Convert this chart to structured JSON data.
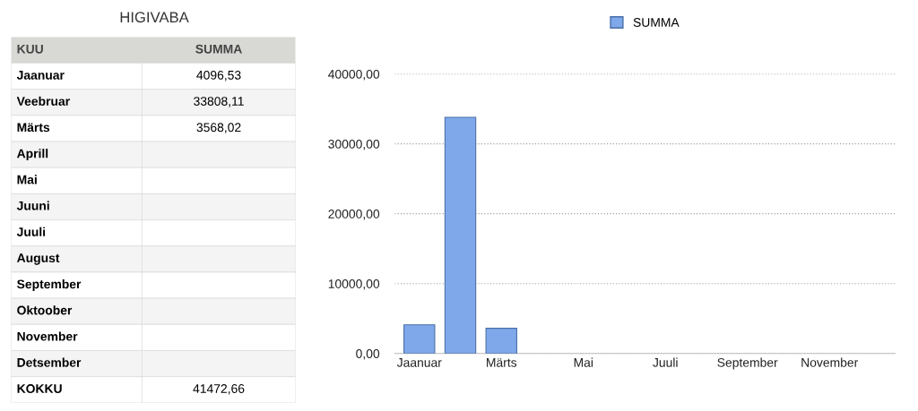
{
  "chart_data": [
    {
      "type": "other",
      "title": "HIGIVABA",
      "categories": [
        "Jaanuar",
        "Veebruar",
        "Märts",
        "Aprill",
        "Mai",
        "Juuni",
        "Juuli",
        "August",
        "September",
        "Oktoober",
        "November",
        "Detsember"
      ],
      "series": [
        {
          "name": "SUMMA",
          "values": [
            4096.53,
            33808.11,
            3568.02,
            null,
            null,
            null,
            null,
            null,
            null,
            null,
            null,
            null
          ],
          "value_labels": [
            "4096,53",
            "33808,11",
            "3568,02",
            null,
            null,
            null,
            null,
            null,
            null,
            null,
            null,
            null
          ]
        }
      ],
      "annotations": [
        "KUU",
        "KOKKU",
        "41472,66"
      ]
    },
    {
      "type": "bar",
      "categories": [
        "Jaanuar",
        null,
        "Märts",
        null,
        "Mai",
        null,
        "Juuli",
        null,
        "September",
        null,
        "November",
        null
      ],
      "series": [
        {
          "name": "SUMMA",
          "color": "#7fa8ea",
          "values": [
            4100,
            33800,
            3600,
            null,
            null,
            null,
            null,
            null,
            null,
            null,
            null,
            null
          ]
        }
      ],
      "ylim": [
        0,
        40000
      ],
      "yticks": [
        {
          "value": 0,
          "label": "0,00"
        },
        {
          "value": 10000,
          "label": "10000,00"
        },
        {
          "value": 20000,
          "label": "20000,00"
        },
        {
          "value": 30000,
          "label": "30000,00"
        },
        {
          "value": 40000,
          "label": "40000,00"
        }
      ],
      "grid": "y",
      "legend": "top"
    }
  ]
}
